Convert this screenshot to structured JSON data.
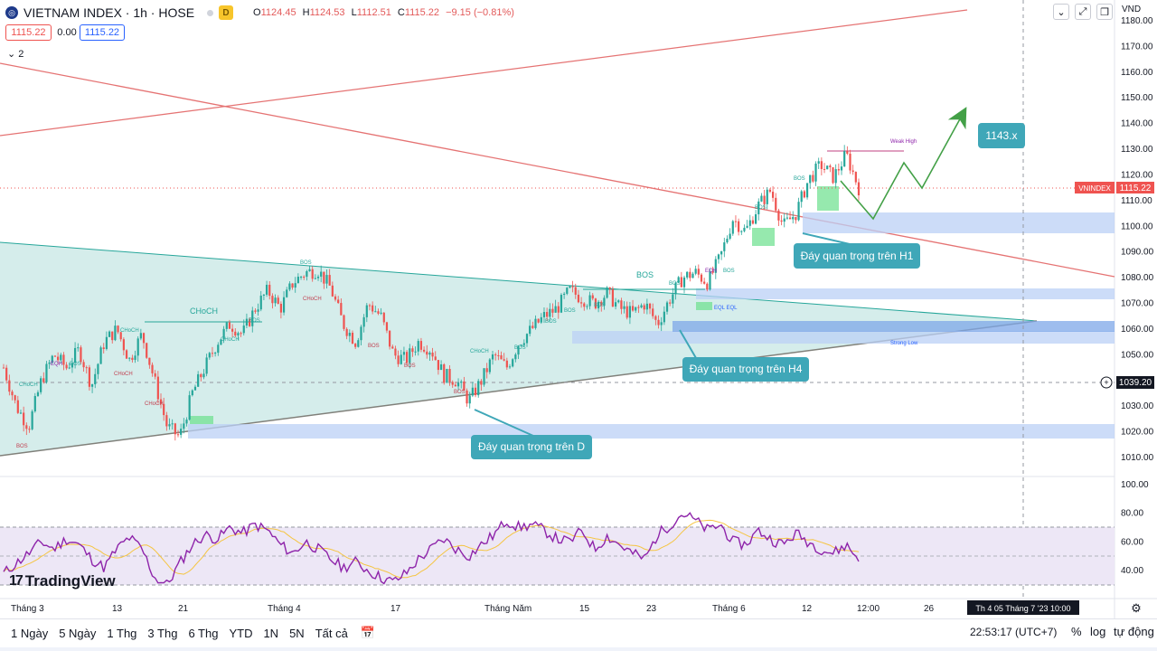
{
  "header": {
    "symbol": "VIETNAM INDEX · 1h · HOSE",
    "badge": "D",
    "o_label": "O",
    "o": "1124.45",
    "h_label": "H",
    "h": "1124.53",
    "l_label": "L",
    "l": "1112.51",
    "c_label": "C",
    "c": "1115.22",
    "change": "−9.15 (−0.81%)"
  },
  "price_boxes": {
    "bid": "1115.22",
    "spread": "0.00",
    "ask": "1115.22"
  },
  "indicator_toggle": "2",
  "currency": "VND",
  "logo_text": "TradingView",
  "colors": {
    "bull": "#26a69a",
    "bear": "#ef5350",
    "triangle": "#b2dfdb",
    "zone": "#bbd0f5",
    "rsi": "#8e24aa",
    "rsi_band": "#ede7f6",
    "projection": "#43a047",
    "label_bg": "#3fa7b8"
  },
  "chart_data": {
    "type": "candlestick",
    "symbol": "VNINDEX",
    "last_price": 1115.22,
    "last_price_label": "1115.22",
    "symbol_tag": "VNINDEX",
    "crosshair_price": "1039.20",
    "crosshair_time": "Th 4 05 Tháng 7 '23   10:00",
    "ylim": [
      1005,
      1185
    ],
    "y_ticks": [
      "1180.00",
      "1170.00",
      "1160.00",
      "1150.00",
      "1140.00",
      "1130.00",
      "1120.00",
      "1110.00",
      "1100.00",
      "1090.00",
      "1080.00",
      "1070.00",
      "1060.00",
      "1050.00",
      "1040.00",
      "1030.00",
      "1020.00",
      "1010.00"
    ],
    "x_ticks": [
      "Tháng 3",
      "13",
      "21",
      "Tháng 4",
      "17",
      "Tháng Năm",
      "15",
      "23",
      "Tháng 6",
      "12",
      "12:00",
      "26"
    ],
    "price_path": [
      1045,
      1030,
      1022,
      1040,
      1050,
      1045,
      1052,
      1038,
      1055,
      1060,
      1048,
      1058,
      1040,
      1022,
      1018,
      1035,
      1045,
      1055,
      1062,
      1058,
      1068,
      1075,
      1068,
      1078,
      1082,
      1083,
      1076,
      1062,
      1055,
      1070,
      1065,
      1050,
      1048,
      1055,
      1052,
      1042,
      1040,
      1032,
      1040,
      1050,
      1045,
      1055,
      1060,
      1065,
      1068,
      1075,
      1072,
      1070,
      1074,
      1068,
      1066,
      1070,
      1062,
      1072,
      1080,
      1082,
      1078,
      1088,
      1103,
      1098,
      1108,
      1114,
      1100,
      1105,
      1118,
      1124,
      1119,
      1128,
      1115
    ],
    "annotations": [
      "CHoCH",
      "BOS",
      "EQH",
      "Weak High",
      "Strong Low",
      "EQL EQL"
    ],
    "callouts": {
      "d": "Đáy quan trọng trên D",
      "h4": "Đáy quan trọng trên H4",
      "h1": "Đáy quan trọng trên H1",
      "target": "1143.x"
    },
    "rsi": {
      "ticks": [
        "100.00",
        "80.00",
        "60.00",
        "40.00"
      ],
      "ylim": [
        25,
        105
      ],
      "upper": 70,
      "lower": 30,
      "values": [
        38,
        45,
        52,
        60,
        55,
        62,
        58,
        48,
        42,
        55,
        63,
        55,
        35,
        30,
        45,
        58,
        65,
        62,
        70,
        66,
        72,
        68,
        58,
        52,
        60,
        55,
        48,
        42,
        46,
        40,
        35,
        32,
        38,
        48,
        55,
        62,
        55,
        50,
        58,
        65,
        75,
        70,
        72,
        68,
        62,
        60,
        68,
        55,
        64,
        58,
        52,
        48,
        65,
        72,
        80,
        75,
        68,
        72,
        60,
        58,
        68,
        62,
        58,
        66,
        60,
        55,
        52,
        58,
        48
      ]
    }
  },
  "bottombar": {
    "ranges": [
      "1 Ngày",
      "5 Ngày",
      "1 Thg",
      "3 Thg",
      "6 Thg",
      "YTD",
      "1N",
      "5N",
      "Tất cả"
    ],
    "time": "22:53:17 (UTC+7)",
    "percent": "%",
    "log": "log",
    "auto": "tự động"
  }
}
